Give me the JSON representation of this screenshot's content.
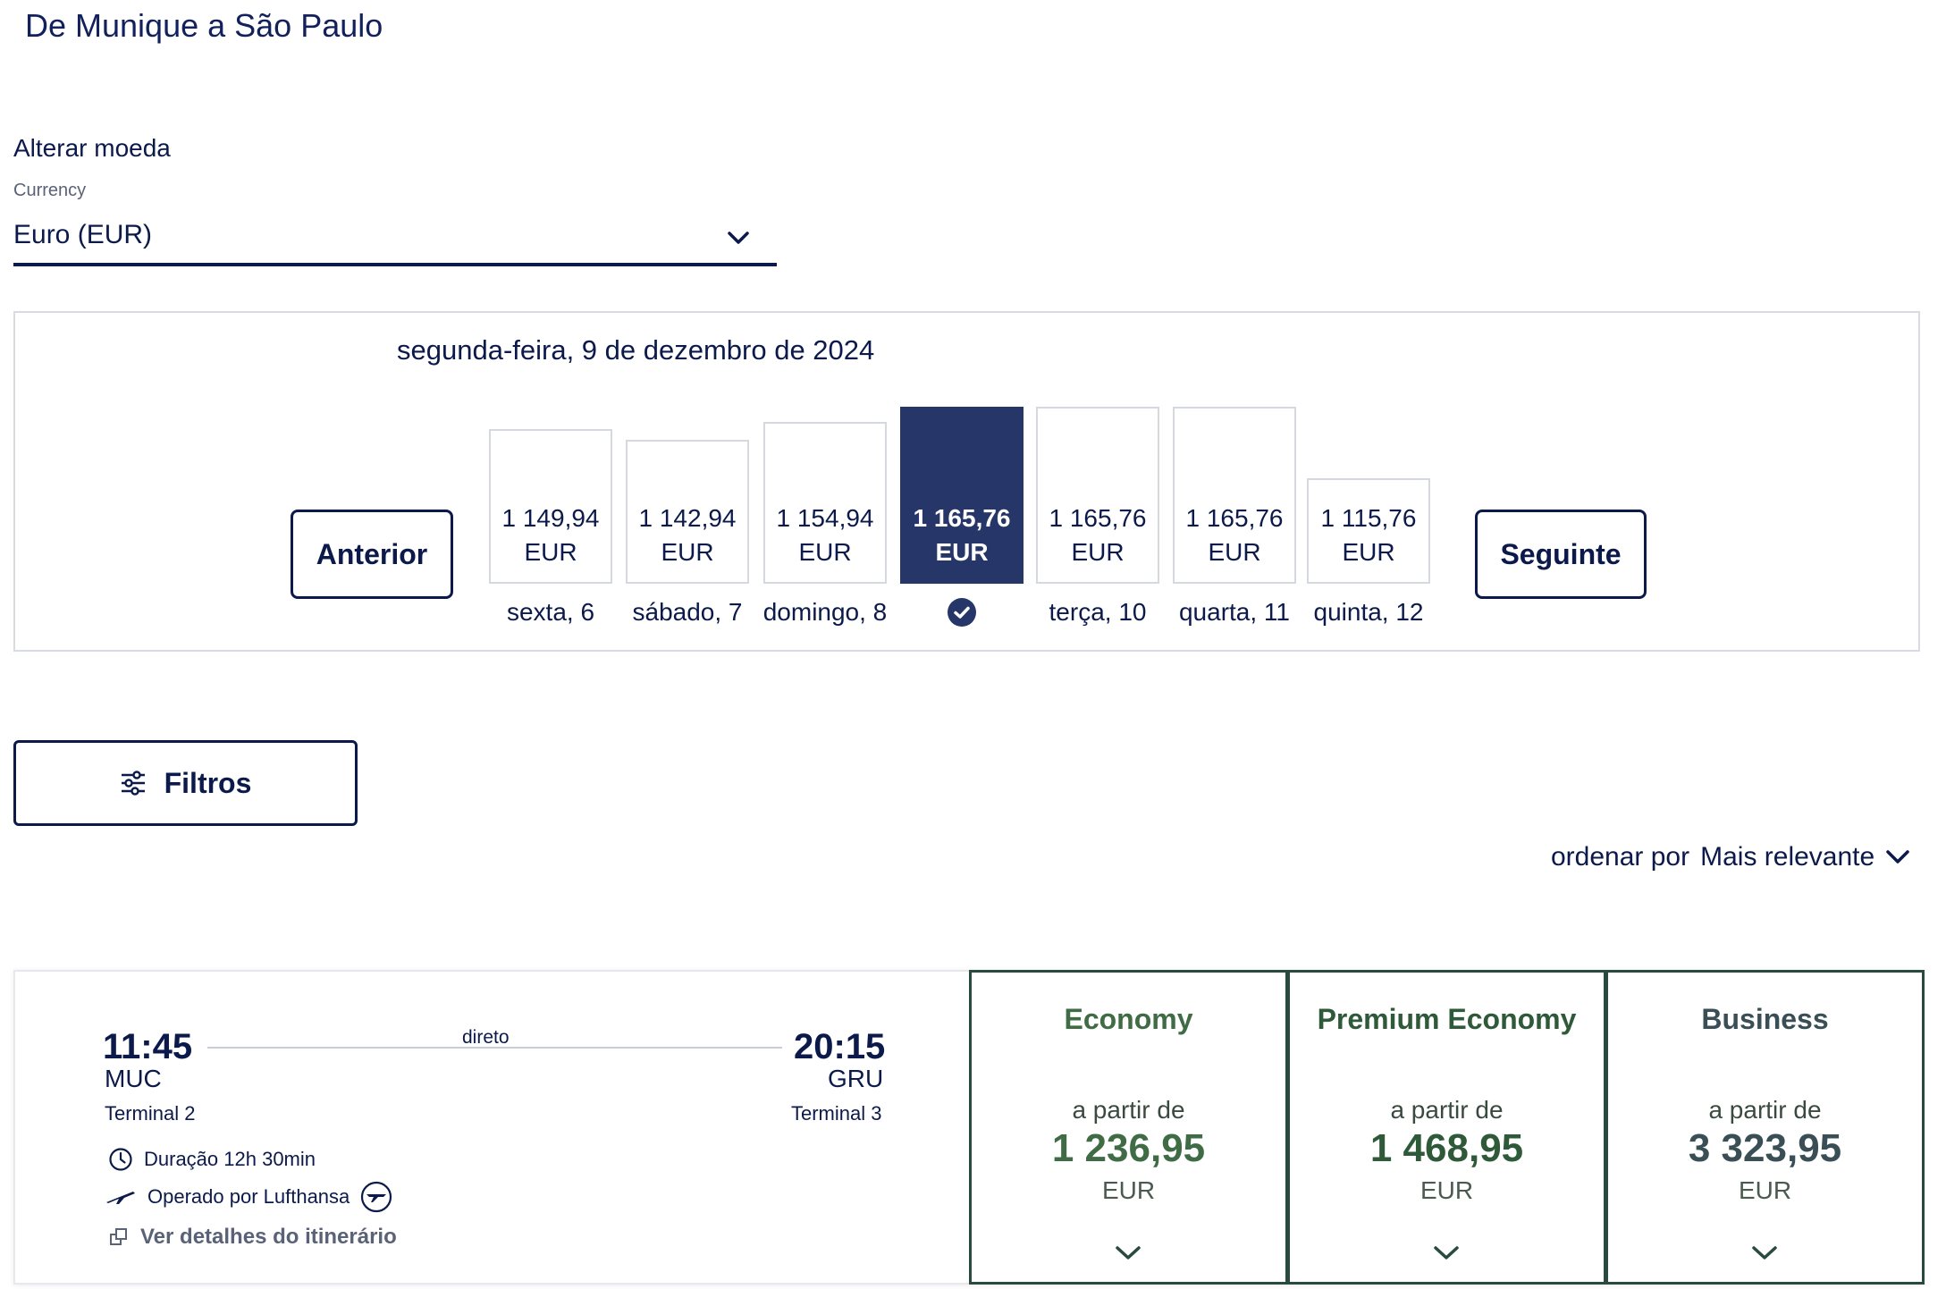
{
  "page": {
    "title": "De Munique a São Paulo"
  },
  "currency": {
    "heading": "Alterar moeda",
    "caption": "Currency",
    "selected": "Euro (EUR)"
  },
  "calendar": {
    "selected_date": "segunda-feira, 9 de dezembro de 2024",
    "prev_label": "Anterior",
    "next_label": "Seguinte",
    "days": [
      {
        "label": "sexta, 6",
        "price": "1 149,94",
        "currency": "EUR",
        "value": 1149.94,
        "selected": false
      },
      {
        "label": "sábado, 7",
        "price": "1 142,94",
        "currency": "EUR",
        "value": 1142.94,
        "selected": false
      },
      {
        "label": "domingo, 8",
        "price": "1 154,94",
        "currency": "EUR",
        "value": 1154.94,
        "selected": false
      },
      {
        "label": "",
        "price": "1 165,76",
        "currency": "EUR",
        "value": 1165.76,
        "selected": true
      },
      {
        "label": "terça, 10",
        "price": "1 165,76",
        "currency": "EUR",
        "value": 1165.76,
        "selected": false
      },
      {
        "label": "quarta, 11",
        "price": "1 165,76",
        "currency": "EUR",
        "value": 1165.76,
        "selected": false
      },
      {
        "label": "quinta, 12",
        "price": "1 115,76",
        "currency": "EUR",
        "value": 1115.76,
        "selected": false
      }
    ]
  },
  "filters": {
    "label": "Filtros"
  },
  "sort": {
    "label": "ordenar por",
    "value": "Mais relevante"
  },
  "flight": {
    "departure": {
      "time": "11:45",
      "airport": "MUC",
      "terminal": "Terminal 2"
    },
    "arrival": {
      "time": "20:15",
      "airport": "GRU",
      "terminal": "Terminal 3"
    },
    "stops": "direto",
    "duration": "Duração 12h 30min",
    "operator": "Operado por Lufthansa",
    "details_link": "Ver detalhes do itinerário",
    "fares": [
      {
        "name": "Economy",
        "from": "a partir de",
        "price": "1 236,95",
        "currency": "EUR",
        "name_color": "#3f6b45",
        "price_color": "#3f6b45"
      },
      {
        "name": "Premium Economy",
        "from": "a partir de",
        "price": "1 468,95",
        "currency": "EUR",
        "name_color": "#2f5a3a",
        "price_color": "#2f5a3a"
      },
      {
        "name": "Business",
        "from": "a partir de",
        "price": "3 323,95",
        "currency": "EUR",
        "name_color": "#3a4f55",
        "price_color": "#3a4f55"
      }
    ]
  },
  "colors": {
    "navy": "#0c1a4b",
    "selected_bar": "#263669",
    "fare_border": "#284a3f"
  }
}
